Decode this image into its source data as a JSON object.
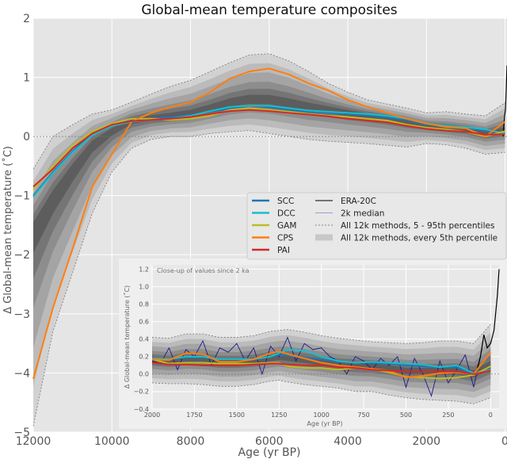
{
  "chart_data": [
    {
      "type": "line",
      "title": "Global-mean temperature composites",
      "xlabel": "Age (yr BP)",
      "ylabel": "Δ Global-mean temperature (˚C)",
      "xlim": [
        12000,
        -50
      ],
      "ylim": [
        -5,
        2
      ],
      "x_reversed": true,
      "xticks": [
        12000,
        10000,
        8000,
        6000,
        4000,
        2000,
        0
      ],
      "yticks": [
        2,
        1,
        0,
        -1,
        -2,
        -3,
        -4,
        -5
      ],
      "grid": true,
      "legend_position": "center-right",
      "x": [
        12000,
        11500,
        11000,
        10500,
        10000,
        9500,
        9000,
        8500,
        8000,
        7500,
        7000,
        6500,
        6000,
        5500,
        5000,
        4500,
        4000,
        3500,
        3000,
        2500,
        2000,
        1500,
        1000,
        500,
        0
      ],
      "series": [
        {
          "name": "SCC",
          "color": "#1f77b4",
          "values": [
            -1.0,
            -0.6,
            -0.25,
            0.05,
            0.2,
            0.27,
            0.3,
            0.33,
            0.36,
            0.42,
            0.47,
            0.52,
            0.5,
            0.45,
            0.42,
            0.4,
            0.38,
            0.36,
            0.32,
            0.28,
            0.2,
            0.17,
            0.14,
            0.1,
            0.05
          ]
        },
        {
          "name": "DCC",
          "color": "#17becf",
          "values": [
            -1.02,
            -0.62,
            -0.27,
            0.02,
            0.18,
            0.25,
            0.28,
            0.3,
            0.35,
            0.43,
            0.5,
            0.52,
            0.52,
            0.48,
            0.44,
            0.42,
            0.4,
            0.38,
            0.35,
            0.3,
            0.22,
            0.18,
            0.16,
            0.12,
            0.05
          ]
        },
        {
          "name": "GAM",
          "color": "#bcbd22",
          "values": [
            -0.9,
            -0.5,
            -0.15,
            0.08,
            0.22,
            0.3,
            0.3,
            0.28,
            0.3,
            0.35,
            0.45,
            0.48,
            0.45,
            0.42,
            0.38,
            0.35,
            0.33,
            0.3,
            0.27,
            0.2,
            0.15,
            0.12,
            0.08,
            0.0,
            0.09
          ]
        },
        {
          "name": "CPS",
          "color": "#ff7f0e",
          "values": [
            -4.1,
            -2.9,
            -1.9,
            -0.85,
            -0.3,
            0.25,
            0.4,
            0.5,
            0.58,
            0.75,
            0.98,
            1.1,
            1.15,
            1.05,
            0.9,
            0.78,
            0.62,
            0.5,
            0.4,
            0.3,
            0.22,
            0.16,
            0.14,
            0.0,
            0.25
          ]
        },
        {
          "name": "PAI",
          "color": "#d62728",
          "values": [
            -0.85,
            -0.55,
            -0.2,
            0.05,
            0.2,
            0.26,
            0.28,
            0.3,
            0.33,
            0.38,
            0.43,
            0.45,
            0.43,
            0.4,
            0.37,
            0.34,
            0.3,
            0.27,
            0.24,
            0.18,
            0.13,
            0.1,
            0.08,
            0.03,
            0.04
          ]
        }
      ],
      "bands": {
        "name": "All 12k methods, every 5th percentile",
        "p95_name": "All 12k methods, 5 - 95th percentiles",
        "upper": [
          -0.55,
          0.0,
          0.2,
          0.38,
          0.45,
          0.58,
          0.72,
          0.85,
          0.95,
          1.1,
          1.25,
          1.38,
          1.4,
          1.28,
          1.1,
          0.9,
          0.75,
          0.62,
          0.55,
          0.48,
          0.4,
          0.42,
          0.38,
          0.35,
          0.57
        ],
        "lower": [
          -4.9,
          -3.3,
          -2.3,
          -1.3,
          -0.6,
          -0.2,
          -0.05,
          0.0,
          0.0,
          0.05,
          0.08,
          0.1,
          0.05,
          0.0,
          -0.05,
          -0.08,
          -0.1,
          -0.12,
          -0.15,
          -0.18,
          -0.12,
          -0.14,
          -0.2,
          -0.3,
          -0.27
        ]
      },
      "era20c": {
        "name": "ERA-20C",
        "color": "#000000",
        "x": [
          50,
          30,
          10,
          -10,
          -30,
          -50
        ],
        "values": [
          0.0,
          0.2,
          0.35,
          0.45,
          0.8,
          1.2
        ]
      },
      "median2k": {
        "name": "2k median",
        "color": "#1a1a8c"
      }
    },
    {
      "type": "line",
      "title": "Close-up of values since 2 ka",
      "xlabel": "Age (yr BP)",
      "ylabel": "Δ Global-mean temperature (˚C)",
      "xlim": [
        2000,
        -50
      ],
      "ylim": [
        -0.4,
        1.25
      ],
      "xticks": [
        2000,
        1750,
        1500,
        1250,
        1000,
        750,
        500,
        250,
        0
      ],
      "yticks": [
        1.2,
        1.0,
        0.8,
        0.6,
        0.4,
        0.2,
        0.0,
        -0.2,
        -0.4
      ],
      "ytick_labels": [
        "1.2",
        "1.0",
        "0.8",
        "0.6",
        "0.4",
        "0.2",
        "0.0",
        "−0.2",
        "−0.4"
      ],
      "grid": true,
      "x": [
        2000,
        1900,
        1800,
        1700,
        1600,
        1500,
        1400,
        1300,
        1250,
        1200,
        1100,
        1000,
        900,
        800,
        700,
        600,
        500,
        400,
        300,
        200,
        100,
        0
      ],
      "series": [
        {
          "name": "SCC",
          "color": "#1f77b4",
          "values": [
            0.17,
            0.17,
            0.19,
            0.19,
            0.17,
            0.17,
            0.18,
            0.2,
            0.22,
            0.21,
            0.19,
            0.17,
            0.14,
            0.13,
            0.13,
            0.12,
            0.1,
            0.09,
            0.08,
            0.08,
            0.0,
            0.05
          ]
        },
        {
          "name": "DCC",
          "color": "#17becf",
          "values": [
            0.18,
            0.17,
            0.2,
            0.2,
            0.17,
            0.17,
            0.17,
            0.2,
            0.24,
            0.28,
            0.27,
            0.2,
            0.15,
            0.13,
            0.14,
            0.13,
            0.12,
            0.11,
            0.08,
            0.1,
            0.01,
            0.05
          ]
        },
        {
          "name": "GAM",
          "color": "#bcbd22",
          "values": [
            0.17,
            0.12,
            0.13,
            0.13,
            0.12,
            0.12,
            0.12,
            0.13,
            0.13,
            0.09,
            0.07,
            0.07,
            0.05,
            0.07,
            0.06,
            0.02,
            -0.03,
            -0.04,
            -0.05,
            -0.04,
            -0.01,
            0.09
          ]
        },
        {
          "name": "CPS",
          "color": "#ff7f0e",
          "values": [
            0.17,
            0.16,
            0.24,
            0.23,
            0.14,
            0.14,
            0.17,
            0.24,
            0.26,
            0.23,
            0.18,
            0.13,
            0.1,
            0.08,
            0.06,
            0.04,
            -0.04,
            -0.02,
            0.01,
            0.02,
            0.0,
            0.25
          ]
        },
        {
          "name": "PAI",
          "color": "#d62728",
          "values": [
            0.13,
            0.11,
            0.11,
            0.1,
            0.1,
            0.1,
            0.11,
            0.12,
            0.12,
            0.11,
            0.1,
            0.1,
            0.08,
            0.07,
            0.05,
            0.04,
            0.03,
            0.03,
            0.03,
            0.03,
            0.0,
            0.04
          ]
        }
      ],
      "bands": {
        "upper": [
          0.42,
          0.41,
          0.46,
          0.46,
          0.42,
          0.42,
          0.44,
          0.49,
          0.5,
          0.51,
          0.48,
          0.44,
          0.41,
          0.39,
          0.37,
          0.36,
          0.35,
          0.36,
          0.38,
          0.38,
          0.35,
          0.57
        ],
        "lower": [
          -0.1,
          -0.11,
          -0.11,
          -0.12,
          -0.14,
          -0.14,
          -0.12,
          -0.08,
          -0.07,
          -0.09,
          -0.12,
          -0.14,
          -0.16,
          -0.2,
          -0.2,
          -0.24,
          -0.27,
          -0.29,
          -0.3,
          -0.31,
          -0.34,
          -0.27
        ]
      },
      "median2k": {
        "name": "2k median",
        "color": "#1a1a8c",
        "x": [
          2000,
          1950,
          1900,
          1850,
          1800,
          1750,
          1700,
          1650,
          1600,
          1550,
          1500,
          1450,
          1400,
          1350,
          1300,
          1250,
          1200,
          1150,
          1100,
          1050,
          1000,
          950,
          900,
          850,
          800,
          750,
          700,
          650,
          600,
          550,
          500,
          450,
          400,
          350,
          300,
          250,
          200,
          150,
          100,
          50
        ],
        "values": [
          0.15,
          0.12,
          0.3,
          0.05,
          0.28,
          0.2,
          0.38,
          0.1,
          0.3,
          0.25,
          0.35,
          0.15,
          0.3,
          0.0,
          0.32,
          0.2,
          0.42,
          0.15,
          0.35,
          0.28,
          0.3,
          0.2,
          0.15,
          0.0,
          0.2,
          0.15,
          0.05,
          0.18,
          0.1,
          0.2,
          -0.15,
          0.18,
          0.0,
          -0.25,
          0.15,
          -0.1,
          0.05,
          0.22,
          -0.15,
          0.3
        ]
      },
      "era20c": {
        "name": "ERA-20C",
        "color": "#000000",
        "x": [
          100,
          80,
          60,
          40,
          20,
          0,
          -20,
          -40,
          -50
        ],
        "values": [
          0.0,
          0.05,
          0.2,
          0.45,
          0.3,
          0.35,
          0.5,
          0.9,
          1.2
        ]
      }
    }
  ],
  "legend": {
    "entries": [
      {
        "label": "SCC",
        "color": "#1f77b4",
        "kind": "line"
      },
      {
        "label": "DCC",
        "color": "#17becf",
        "kind": "line"
      },
      {
        "label": "GAM",
        "color": "#bcbd22",
        "kind": "line"
      },
      {
        "label": "CPS",
        "color": "#ff7f0e",
        "kind": "line"
      },
      {
        "label": "PAI",
        "color": "#d62728",
        "kind": "line"
      },
      {
        "label": "ERA-20C",
        "color": "#000000",
        "kind": "thin"
      },
      {
        "label": "2k median",
        "color": "#9b9bd0",
        "kind": "thin"
      },
      {
        "label": "All 12k methods, 5 - 95th percentiles",
        "color": "#888888",
        "kind": "dashed"
      },
      {
        "label": "All 12k methods, every 5th percentile",
        "color": "#c8c8c8",
        "kind": "patch"
      }
    ]
  }
}
